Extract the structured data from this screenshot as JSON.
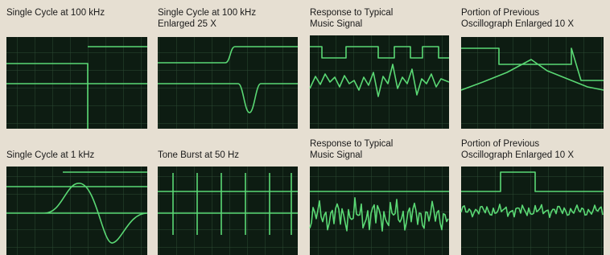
{
  "rows": [
    [
      {
        "caption": [
          "Single Cycle at 100 kHz"
        ]
      },
      {
        "caption": [
          "Single Cycle at 100 kHz",
          "Enlarged 25 X"
        ]
      },
      {
        "caption": [
          "Response to Typical",
          "Music Signal"
        ]
      },
      {
        "caption": [
          "Portion of Previous",
          "Oscillograph Enlarged 10 X"
        ]
      }
    ],
    [
      {
        "caption": [
          "Single Cycle at 1 kHz"
        ]
      },
      {
        "caption": [
          "Tone Burst at 50 Hz"
        ]
      },
      {
        "caption": [
          "Response to Typical",
          "Music Signal"
        ]
      },
      {
        "caption": [
          "Portion of Previous",
          "Oscillograph Enlarged 10 X"
        ]
      }
    ]
  ]
}
